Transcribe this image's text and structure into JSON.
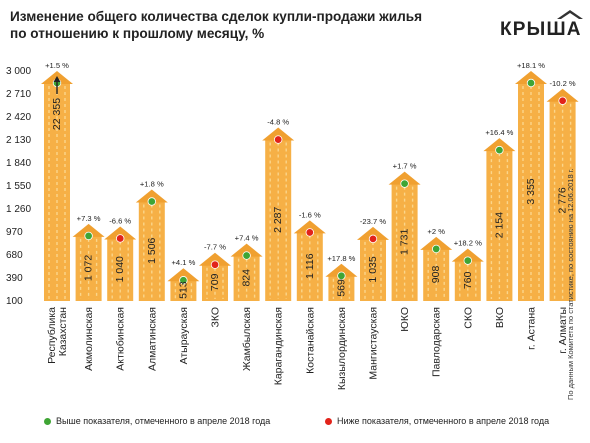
{
  "header": {
    "title_line1": "Изменение общего количества сделок купли-продажи жилья",
    "title_line2": "по отношению к прошлому месяцу, %",
    "logo_text": "КРЫША"
  },
  "source_note": "По данным Комитета по статистике, по состоянию на 12.06.2018 г.",
  "legend": {
    "above_label": "Выше показателя, отмеченного в апреле 2018 года",
    "below_label": "Ниже показателя, отмеченного в апреле 2018 года"
  },
  "colors": {
    "bar": "#f6b046",
    "bar_top": "#f0a030",
    "above": "#3fa535",
    "below": "#e2231a",
    "text": "#222222"
  },
  "chart_data": {
    "type": "bar",
    "title": "Изменение общего количества сделок купли-продажи жилья по отношению к прошлому месяцу, %",
    "y_ticks": [
      "100",
      "390",
      "680",
      "970",
      "1 260",
      "1 550",
      "1 840",
      "2 130",
      "2 420",
      "2 710",
      "3 000"
    ],
    "ylim": [
      100,
      3000
    ],
    "categories": [
      "Республика Казахстан",
      "Акмолинская",
      "Актюбинская",
      "Алматинская",
      "Атырауская",
      "ЗКО",
      "Жамбылская",
      "Карагандинская",
      "Костанайская",
      "Кызылординская",
      "Мангистауская",
      "ЮКО",
      "Павлодарская",
      "СКО",
      "ВКО",
      "г. Астана",
      "г. Алматы"
    ],
    "category_lines": [
      [
        "Республика",
        "Казахстан"
      ],
      [
        "Акмолинская"
      ],
      [
        "Актюбинская"
      ],
      [
        "Алматинская"
      ],
      [
        "Атырауская"
      ],
      [
        "ЗКО"
      ],
      [
        "Жамбылская"
      ],
      [
        "Карагандинская"
      ],
      [
        "Костанайская"
      ],
      [
        "Кызылординская"
      ],
      [
        "Мангистауская"
      ],
      [
        "ЮКО"
      ],
      [
        "Павлодарская"
      ],
      [
        "СКО"
      ],
      [
        "ВКО"
      ],
      [
        "г. Астана"
      ],
      [
        "г. Алматы"
      ]
    ],
    "values": [
      22355,
      1072,
      1040,
      1506,
      513,
      709,
      824,
      2287,
      1116,
      569,
      1035,
      1731,
      908,
      760,
      2154,
      3355,
      2776
    ],
    "value_labels": [
      "22 355",
      "1 072",
      "1 040",
      "1 506",
      "513",
      "709",
      "824",
      "2 287",
      "1 116",
      "569",
      "1 035",
      "1 731",
      "908",
      "760",
      "2 154",
      "3 355",
      "2 776"
    ],
    "change_labels": [
      "+1.5 %",
      "+7.3 %",
      "-6.6 %",
      "+1.8 %",
      "+4.1 %",
      "-7.7 %",
      "+7.4 %",
      "-4.8 %",
      "-1.6 %",
      "+17.8 %",
      "-23.7 %",
      "+1.7 %",
      "+2 %",
      "+18.2 %",
      "+16.4 %",
      "+18.1 %",
      "-10.2 %"
    ],
    "status": [
      "above",
      "above",
      "below",
      "above",
      "above",
      "below",
      "above",
      "below",
      "below",
      "above",
      "below",
      "above",
      "above",
      "above",
      "above",
      "above",
      "below"
    ],
    "clipped_bars": [
      0
    ],
    "legend_position": "bottom"
  }
}
